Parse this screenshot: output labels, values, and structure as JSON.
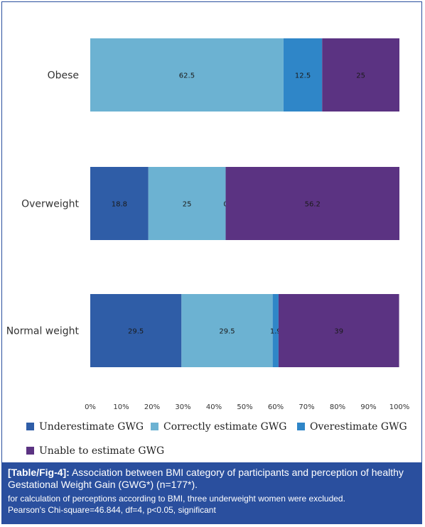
{
  "chart_data": {
    "type": "bar",
    "orientation": "horizontal",
    "stacked": true,
    "categories": [
      "Obese",
      "Overweight",
      "Normal weight"
    ],
    "series": [
      {
        "name": "Underestimate GWG",
        "color": "#2f5da7",
        "values": [
          0,
          18.8,
          29.5
        ],
        "labels": [
          "",
          "18.8",
          "29.5"
        ]
      },
      {
        "name": "Correctly estimate GWG",
        "color": "#6cb2d2",
        "values": [
          62.5,
          25,
          29.5
        ],
        "labels": [
          "62.5",
          "25",
          "29.5"
        ]
      },
      {
        "name": "Overestimate GWG",
        "color": "#2f86c8",
        "values": [
          12.5,
          0,
          1.9
        ],
        "labels": [
          "12.5",
          "0",
          "1.9"
        ]
      },
      {
        "name": "Unable to estimate GWG",
        "color": "#5b3382",
        "values": [
          25,
          56.2,
          39
        ],
        "labels": [
          "25",
          "56.2",
          "39"
        ]
      }
    ],
    "xlim": [
      0,
      100
    ],
    "x_ticks": [
      "0%",
      "10%",
      "20%",
      "30%",
      "40%",
      "50%",
      "60%",
      "70%",
      "80%",
      "90%",
      "100%"
    ],
    "grid": false,
    "legend_position": "bottom"
  },
  "caption": {
    "tag": "[Table/Fig-4]:",
    "title": "Association between BMI category of participants and perception of healthy Gestational Weight Gain (GWG*) (n=177*).",
    "note1": "for calculation of perceptions according to BMI, three underweight women were excluded.",
    "note2": "Pearson's Chi-square=46.844, df=4, p<0.05, significant"
  },
  "colors": {
    "frame": "#2a4f9e",
    "caption_bg": "#2a4f9e",
    "caption_text": "#ffffff"
  }
}
